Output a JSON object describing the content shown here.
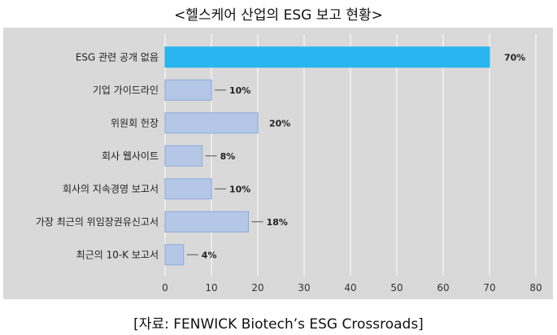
{
  "title": "<헬스케어 산업의 ESG 보고 현황>",
  "source": "[자료: FENWICK Biotech’s ESG Crossroads]",
  "chart_data": {
    "type": "bar",
    "orientation": "horizontal",
    "categories": [
      "ESG 관련 공개 없음",
      "기업 가이드라인",
      "위원회 헌장",
      "회사 웹사이트",
      "회사의 지속경영 보고서",
      "가장 최근의 위임장권유신고서",
      "최근의 10-K 보고서"
    ],
    "values": [
      70,
      10,
      20,
      8,
      10,
      18,
      4
    ],
    "data_labels": [
      "70%",
      "10%",
      "20%",
      "8%",
      "10%",
      "18%",
      "4%"
    ],
    "highlight_index": 0,
    "xlim": [
      0,
      80
    ],
    "xticks": [
      0,
      10,
      20,
      30,
      40,
      50,
      60,
      70,
      80
    ],
    "grid": "vertical",
    "colors": {
      "plot_bg": "#d9d9d9",
      "bar": "#b4c7e7",
      "bar_edge": "#8faadc",
      "highlight": "#29b6f0",
      "grid": "#ffffff"
    }
  }
}
